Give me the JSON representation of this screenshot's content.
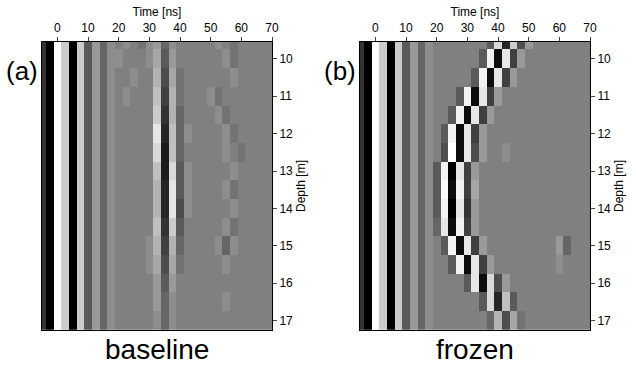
{
  "chart_data": [
    {
      "type": "heatmap",
      "panel_label": "(a)",
      "caption": "baseline",
      "x_label": "Time [ns]",
      "y_label": "Depth [m]",
      "xlim": [
        -5,
        70
      ],
      "ylim": [
        17.25,
        9.55
      ],
      "xticks": [
        0,
        10,
        20,
        30,
        40,
        50,
        60,
        70
      ],
      "yticks": [
        10,
        11,
        12,
        13,
        14,
        15,
        16,
        17
      ],
      "color_range": [
        -1,
        1
      ],
      "x": [
        -5,
        -2.5,
        0,
        2.5,
        5,
        7.5,
        10,
        12.5,
        15,
        17.5,
        20,
        22.5,
        25,
        27.5,
        30,
        32.5,
        35,
        37.5,
        40,
        42.5,
        45,
        47.5,
        50,
        52.5,
        55,
        57.5,
        60,
        62.5,
        65,
        67.5,
        70
      ],
      "y": [
        9.5,
        10,
        10.5,
        11,
        11.5,
        12,
        12.5,
        13,
        13.5,
        14,
        14.5,
        15,
        15.5,
        16,
        16.5,
        17
      ],
      "cells": [
        [
          -0.6,
          -1,
          1,
          0.6,
          -1,
          0.6,
          -0.3,
          0.2,
          -0.2,
          0.1,
          0,
          0.1,
          0,
          -0.1,
          0.1,
          0.2,
          -0.2,
          0.1,
          0,
          0,
          0,
          0,
          0,
          0.1,
          0,
          -0.1,
          0,
          0,
          0,
          0,
          0
        ],
        [
          -0.6,
          -1,
          1,
          0.6,
          -1,
          0.6,
          -0.3,
          0.2,
          -0.2,
          0.1,
          0.1,
          0,
          0,
          0,
          0.1,
          0.3,
          -0.3,
          0.2,
          0,
          0,
          0,
          0,
          0,
          0,
          0.1,
          -0.1,
          0,
          0,
          0,
          0,
          0
        ],
        [
          -0.6,
          -1,
          1,
          0.6,
          -1,
          0.6,
          -0.3,
          0.2,
          -0.2,
          0.1,
          0,
          0,
          0.1,
          0,
          0,
          0.4,
          -0.4,
          0.3,
          -0.1,
          0,
          0,
          0,
          0,
          0,
          0,
          0.1,
          0,
          0,
          0,
          0,
          0
        ],
        [
          -0.6,
          -1,
          1,
          0.6,
          -1,
          0.6,
          -0.3,
          0.2,
          -0.2,
          0.1,
          0,
          0.1,
          0,
          0,
          0,
          0.5,
          -0.5,
          0.4,
          -0.1,
          0,
          0,
          0,
          0.1,
          -0.1,
          0,
          0,
          0,
          0,
          0,
          0,
          0
        ],
        [
          -0.6,
          -1,
          1,
          0.6,
          -1,
          0.6,
          -0.3,
          0.2,
          -0.2,
          0.1,
          0,
          0,
          0,
          0,
          0,
          0.6,
          -0.6,
          0.4,
          -0.2,
          0,
          0,
          0,
          0,
          0.1,
          -0.1,
          0,
          0,
          0,
          0,
          0,
          0
        ],
        [
          -0.6,
          -1,
          1,
          0.6,
          -1,
          0.6,
          -0.3,
          0.2,
          -0.2,
          0.1,
          0,
          0,
          0,
          0,
          0,
          0.8,
          -0.7,
          0.5,
          -0.2,
          0.1,
          0,
          0,
          0,
          0,
          0.1,
          -0.1,
          0,
          0,
          0,
          0,
          0
        ],
        [
          -0.6,
          -1,
          1,
          0.6,
          -1,
          0.6,
          -0.3,
          0.2,
          -0.2,
          0.1,
          0,
          0,
          0,
          0,
          0,
          0.7,
          -0.8,
          0.5,
          -0.2,
          0,
          0,
          0,
          0,
          0,
          0.1,
          0,
          -0.1,
          0,
          0,
          0,
          0
        ],
        [
          -0.6,
          -1,
          1,
          0.6,
          -1,
          0.6,
          -0.3,
          0.2,
          -0.2,
          0.1,
          0,
          0,
          0,
          0,
          0,
          0.5,
          -0.8,
          0.7,
          -0.3,
          0.1,
          0,
          0,
          0,
          0,
          0,
          0.1,
          0,
          0,
          0,
          0,
          0
        ],
        [
          -0.6,
          -1,
          1,
          0.6,
          -1,
          0.6,
          -0.3,
          0.2,
          -0.2,
          0.1,
          0,
          0,
          0,
          0,
          0,
          0.4,
          -0.7,
          0.8,
          -0.3,
          0.1,
          0,
          0,
          0,
          0,
          0.1,
          -0.1,
          0,
          0,
          0,
          0,
          0
        ],
        [
          -0.6,
          -1,
          1,
          0.6,
          -1,
          0.6,
          -0.3,
          0.2,
          -0.2,
          0.1,
          0,
          0,
          0,
          0,
          0,
          0.4,
          -0.7,
          0.8,
          -0.4,
          0.1,
          0,
          0,
          0,
          0,
          0,
          0.1,
          0,
          0,
          0,
          0,
          0
        ],
        [
          -0.6,
          -1,
          1,
          0.6,
          -1,
          0.6,
          -0.3,
          0.2,
          -0.2,
          0.1,
          0,
          0,
          0,
          0,
          0,
          0.5,
          -0.6,
          0.6,
          -0.3,
          0,
          0,
          0,
          0,
          0,
          0.1,
          -0.1,
          0,
          0,
          0,
          0,
          0
        ],
        [
          -0.6,
          -1,
          1,
          0.6,
          -1,
          0.6,
          -0.3,
          0.2,
          -0.2,
          0.1,
          0,
          0,
          0,
          0,
          0.1,
          0.4,
          -0.5,
          0.4,
          -0.2,
          0,
          0,
          0,
          0,
          0.1,
          -0.2,
          0.1,
          0,
          0,
          0,
          0,
          0
        ],
        [
          -0.6,
          -1,
          1,
          0.6,
          -1,
          0.6,
          -0.3,
          0.2,
          -0.2,
          0.1,
          0,
          0,
          0,
          0,
          0.1,
          0.3,
          -0.4,
          0.3,
          -0.1,
          0,
          0,
          0,
          0,
          0,
          0.1,
          0,
          0,
          0,
          0,
          0,
          0
        ],
        [
          -0.6,
          -1,
          1,
          0.6,
          -1,
          0.6,
          -0.3,
          0.2,
          -0.2,
          0.1,
          0,
          0,
          0,
          0,
          0,
          0.2,
          -0.3,
          0.2,
          0,
          0,
          0,
          0,
          0,
          0,
          0,
          0,
          0,
          0,
          0,
          0,
          0
        ],
        [
          -0.6,
          -1,
          1,
          0.6,
          -1,
          0.6,
          -0.3,
          0.2,
          -0.2,
          0.1,
          0,
          0,
          0,
          0,
          0,
          0.2,
          -0.2,
          0.1,
          0,
          0,
          0,
          0,
          0,
          0,
          0.1,
          0,
          0,
          0,
          0,
          0,
          0
        ],
        [
          -0.6,
          -1,
          1,
          0.6,
          -1,
          0.6,
          -0.3,
          0.2,
          -0.2,
          0.1,
          0,
          0,
          0,
          0,
          0,
          0.1,
          -0.2,
          0.1,
          0,
          0,
          0,
          0,
          0,
          0,
          0,
          0,
          0,
          0,
          0,
          0,
          0
        ]
      ]
    },
    {
      "type": "heatmap",
      "panel_label": "(b)",
      "caption": "frozen",
      "x_label": "Time [ns]",
      "y_label": "Depth [m]",
      "xlim": [
        -5,
        70
      ],
      "ylim": [
        17.25,
        9.55
      ],
      "xticks": [
        0,
        10,
        20,
        30,
        40,
        50,
        60,
        70
      ],
      "yticks": [
        10,
        11,
        12,
        13,
        14,
        15,
        16,
        17
      ],
      "color_range": [
        -1,
        1
      ],
      "x": [
        -5,
        -2.5,
        0,
        2.5,
        5,
        7.5,
        10,
        12.5,
        15,
        17.5,
        20,
        22.5,
        25,
        27.5,
        30,
        32.5,
        35,
        37.5,
        40,
        42.5,
        45,
        47.5,
        50,
        52.5,
        55,
        57.5,
        60,
        62.5,
        65,
        67.5,
        70
      ],
      "y": [
        9.5,
        10,
        10.5,
        11,
        11.5,
        12,
        12.5,
        13,
        13.5,
        14,
        14.5,
        15,
        15.5,
        16,
        16.5,
        17
      ],
      "cells": [
        [
          -0.6,
          -1,
          1,
          0.6,
          -1,
          0.6,
          -0.3,
          0.2,
          -0.2,
          0.1,
          0,
          0,
          0,
          0,
          0,
          0,
          0,
          -0.3,
          0.7,
          -0.7,
          0.6,
          -0.4,
          0.2,
          0,
          0,
          0,
          0,
          0,
          0,
          0,
          0
        ],
        [
          -0.6,
          -1,
          1,
          0.6,
          -1,
          0.6,
          -0.3,
          0.2,
          -0.2,
          0.1,
          0,
          0,
          0,
          0,
          0,
          0,
          -0.3,
          0.9,
          -0.9,
          0.8,
          -0.5,
          0.2,
          0,
          0,
          0,
          0,
          0,
          0,
          0,
          0,
          0
        ],
        [
          -0.6,
          -1,
          1,
          0.6,
          -1,
          0.6,
          -0.3,
          0.2,
          -0.2,
          0.1,
          0,
          0,
          0,
          0,
          0,
          -0.3,
          0.9,
          -0.9,
          0.8,
          -0.5,
          0.2,
          0,
          0,
          0,
          0,
          0,
          0,
          0,
          0,
          0,
          0
        ],
        [
          -0.6,
          -1,
          1,
          0.6,
          -1,
          0.6,
          -0.3,
          0.2,
          -0.2,
          0.1,
          0,
          0,
          0,
          -0.3,
          0.9,
          -0.9,
          0.8,
          -0.5,
          0.2,
          0,
          0,
          0,
          0,
          0,
          0,
          0,
          0,
          0,
          0,
          0,
          0
        ],
        [
          -0.6,
          -1,
          1,
          0.6,
          -1,
          0.6,
          -0.3,
          0.2,
          -0.2,
          0.1,
          0,
          0,
          -0.3,
          0.9,
          -0.9,
          0.8,
          -0.5,
          0.2,
          0,
          0,
          0,
          0,
          0,
          0,
          0,
          0,
          0,
          0,
          0,
          0,
          0
        ],
        [
          -0.6,
          -1,
          1,
          0.6,
          -1,
          0.6,
          -0.3,
          0.2,
          -0.2,
          0.1,
          0,
          -0.3,
          0.9,
          -0.9,
          0.8,
          -0.5,
          0.2,
          0,
          0,
          0,
          0,
          0,
          0,
          0,
          0,
          0,
          0,
          0,
          0,
          0,
          0
        ],
        [
          -0.6,
          -1,
          1,
          0.6,
          -1,
          0.6,
          -0.3,
          0.2,
          -0.2,
          0.1,
          0,
          -0.4,
          1,
          -0.9,
          0.8,
          -0.4,
          0.2,
          0,
          0,
          0.1,
          0,
          0,
          0,
          0,
          0,
          0,
          0,
          0,
          0,
          0,
          0
        ],
        [
          -0.6,
          -1,
          1,
          0.6,
          -1,
          0.6,
          -0.3,
          0.2,
          -0.2,
          0.1,
          -0.3,
          0.9,
          -1,
          0.8,
          -0.5,
          0.2,
          0,
          0,
          0,
          0,
          0,
          0,
          0,
          0,
          0,
          0,
          0,
          0,
          0,
          0,
          0
        ],
        [
          -0.6,
          -1,
          1,
          0.6,
          -1,
          0.6,
          -0.3,
          0.2,
          -0.2,
          0.1,
          -0.3,
          1,
          -0.9,
          0.9,
          -0.5,
          0.3,
          0,
          0,
          0,
          0,
          0,
          0,
          0,
          0,
          0,
          0,
          0,
          0,
          0,
          0,
          0
        ],
        [
          -0.6,
          -1,
          1,
          0.6,
          -1,
          0.6,
          -0.3,
          0.2,
          -0.2,
          0.1,
          -0.3,
          0.9,
          -1,
          0.8,
          -0.6,
          0.2,
          0,
          0,
          0,
          0,
          0,
          0,
          0,
          0,
          0,
          0,
          0,
          0,
          0,
          0,
          0
        ],
        [
          -0.6,
          -1,
          1,
          0.6,
          -1,
          0.6,
          -0.3,
          0.2,
          -0.2,
          0.1,
          -0.2,
          0.8,
          -0.9,
          0.9,
          -0.5,
          0.2,
          0,
          0,
          0,
          0,
          0,
          0,
          0,
          0,
          0,
          0,
          0,
          0,
          0,
          0,
          0
        ],
        [
          -0.6,
          -1,
          1,
          0.6,
          -1,
          0.6,
          -0.3,
          0.2,
          -0.2,
          0.1,
          0,
          -0.3,
          0.9,
          -0.9,
          0.8,
          -0.5,
          0.2,
          0,
          0,
          0,
          0,
          0,
          0,
          0,
          0,
          0,
          0.2,
          -0.2,
          0,
          0,
          0
        ],
        [
          -0.6,
          -1,
          1,
          0.6,
          -1,
          0.6,
          -0.3,
          0.2,
          -0.2,
          0.1,
          0,
          0,
          -0.3,
          0.9,
          -0.9,
          0.8,
          -0.5,
          0.2,
          0,
          0,
          0,
          0,
          0,
          0,
          0,
          0,
          0.1,
          0,
          0,
          0,
          0
        ],
        [
          -0.6,
          -1,
          1,
          0.6,
          -1,
          0.6,
          -0.3,
          0.2,
          -0.2,
          0.1,
          0,
          0,
          0,
          0,
          -0.3,
          0.8,
          -0.9,
          0.7,
          -0.4,
          0.2,
          0,
          0,
          0,
          0,
          0,
          0,
          0,
          0,
          0,
          0,
          0
        ],
        [
          -0.6,
          -1,
          1,
          0.6,
          -1,
          0.6,
          -0.3,
          0.2,
          -0.2,
          0.1,
          0,
          0,
          0,
          0,
          0,
          0,
          -0.3,
          0.7,
          -0.7,
          0.5,
          -0.3,
          0,
          0,
          0,
          0,
          0,
          0,
          0,
          0,
          0,
          0
        ],
        [
          -0.6,
          -1,
          1,
          0.6,
          -1,
          0.6,
          -0.3,
          0.2,
          -0.2,
          0.1,
          0,
          0,
          0,
          0,
          0,
          0,
          0,
          -0.2,
          0.4,
          -0.4,
          0.3,
          -0.1,
          0,
          0,
          0,
          0,
          0,
          0,
          0,
          0,
          0
        ]
      ]
    }
  ]
}
